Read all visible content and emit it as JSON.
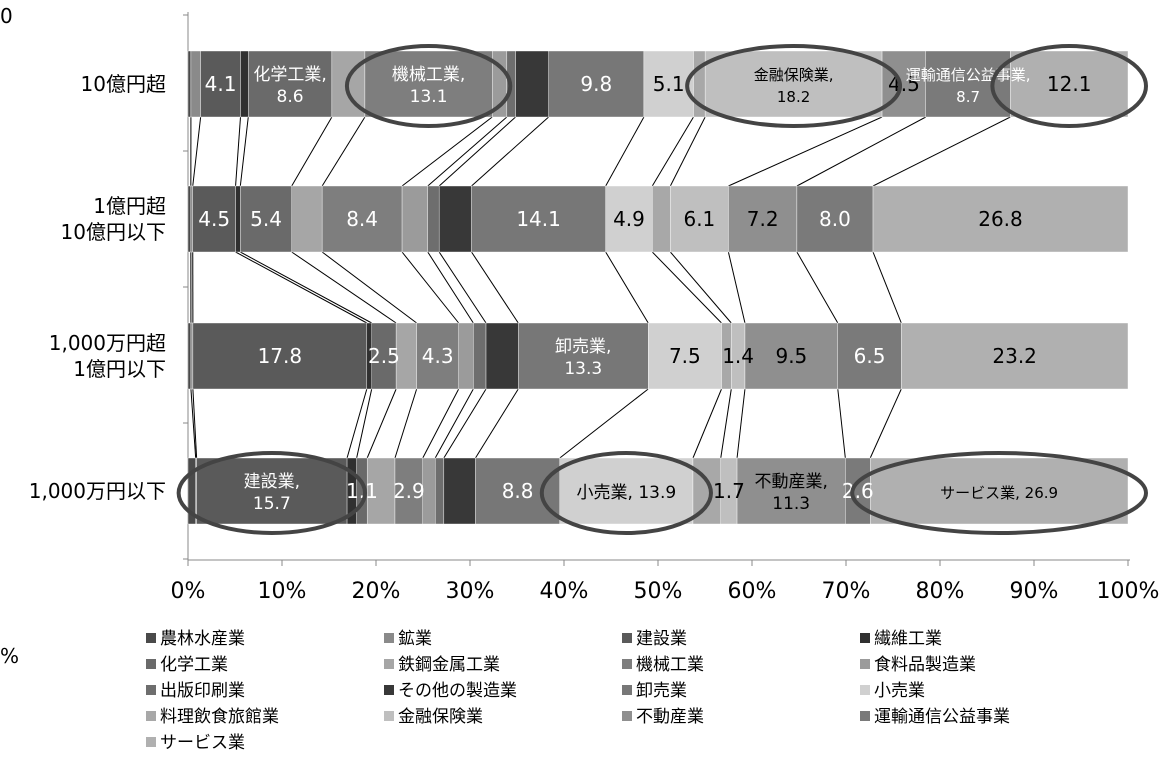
{
  "page": {
    "top_left_cut_label": "0",
    "left_middle_cut_label": "%"
  },
  "chart_data": {
    "type": "bar",
    "orientation": "horizontal",
    "stacked": "100%",
    "categories": [
      "10億円超",
      "1億円超\n10億円以下",
      "1,000万円超\n1億円以下",
      "1,000万円以下"
    ],
    "xlim": [
      0,
      100
    ],
    "x_tick_labels": [
      "0%",
      "10%",
      "20%",
      "30%",
      "40%",
      "50%",
      "60%",
      "70%",
      "80%",
      "90%",
      "100%"
    ],
    "legend_position": "bottom",
    "series": [
      {
        "name": "農林水産業",
        "values": [
          0.3,
          0.3,
          0.3,
          0.8
        ],
        "color": "#4a4a4a"
      },
      {
        "name": "鉱業",
        "values": [
          1.0,
          0.2,
          0.2,
          0.1
        ],
        "color": "#8a8a8a"
      },
      {
        "name": "建設業",
        "values": [
          4.1,
          4.5,
          17.8,
          15.7
        ],
        "color": "#5a5a5a"
      },
      {
        "name": "繊維工業",
        "values": [
          0.8,
          0.5,
          0.5,
          1.0
        ],
        "color": "#303030"
      },
      {
        "name": "化学工業",
        "values": [
          8.6,
          5.4,
          2.5,
          1.1
        ],
        "color": "#6a6a6a"
      },
      {
        "name": "鉄鋼金属工業",
        "values": [
          3.4,
          3.2,
          2.1,
          2.9
        ],
        "color": "#a6a6a6"
      },
      {
        "name": "機械工業",
        "values": [
          13.1,
          8.4,
          4.3,
          2.9
        ],
        "color": "#7e7e7e"
      },
      {
        "name": "食料品製造業",
        "values": [
          1.5,
          2.7,
          1.5,
          1.3
        ],
        "color": "#9b9b9b"
      },
      {
        "name": "出版印刷業",
        "values": [
          0.9,
          1.2,
          1.3,
          0.9
        ],
        "color": "#6e6e6e"
      },
      {
        "name": "その他の製造業",
        "values": [
          3.4,
          3.4,
          3.3,
          3.3
        ],
        "color": "#383838"
      },
      {
        "name": "卸売業",
        "values": [
          9.8,
          14.1,
          13.3,
          8.8
        ],
        "color": "#777777"
      },
      {
        "name": "小売業",
        "values": [
          5.1,
          4.9,
          7.5,
          13.9
        ],
        "color": "#d0d0d0"
      },
      {
        "name": "料理飲食旅館業",
        "values": [
          1.2,
          1.9,
          1.0,
          2.9
        ],
        "color": "#a8a8a8"
      },
      {
        "name": "金融保険業",
        "values": [
          18.2,
          6.1,
          1.4,
          1.7
        ],
        "color": "#bfbfbf"
      },
      {
        "name": "不動産業",
        "values": [
          4.5,
          7.2,
          9.5,
          11.3
        ],
        "color": "#8f8f8f"
      },
      {
        "name": "運輸通信公益事業",
        "values": [
          8.7,
          8.0,
          6.5,
          2.6
        ],
        "color": "#7a7a7a"
      },
      {
        "name": "サービス業",
        "values": [
          12.1,
          26.8,
          23.2,
          26.9
        ],
        "color": "#b0b0b0"
      }
    ],
    "data_labels": [
      [
        "",
        "",
        "4.1",
        "",
        "化学工業,\n8.6",
        "",
        "機械工業,\n13.1",
        "",
        "",
        "",
        "9.8",
        "5.1",
        "",
        "金融保険業,\n18.2",
        "4.5",
        "運輸通信公益事業,\n8.7",
        "12.1"
      ],
      [
        "",
        "",
        "4.5",
        "",
        "5.4",
        "",
        "8.4",
        "",
        "",
        "",
        "14.1",
        "4.9",
        "",
        "6.1",
        "7.2",
        "8.0",
        "26.8"
      ],
      [
        "",
        "",
        "17.8",
        "",
        "2.5",
        "",
        "4.3",
        "",
        "",
        "",
        "卸売業,\n13.3",
        "7.5",
        "",
        "1.4",
        "9.5",
        "6.5",
        "23.2"
      ],
      [
        "",
        "",
        "建設業,\n15.7",
        "",
        "1.1",
        "",
        "2.9",
        "",
        "",
        "",
        "8.8",
        "小売業, 13.9",
        "",
        "1.7",
        "不動産業,\n11.3",
        "2.6",
        "サービス業, 26.9"
      ]
    ],
    "highlighted_labels": [
      {
        "bar": 0,
        "series": "機械工業"
      },
      {
        "bar": 0,
        "series": "金融保険業"
      },
      {
        "bar": 0,
        "series": "サービス業"
      },
      {
        "bar": 3,
        "series": "建設業"
      },
      {
        "bar": 3,
        "series": "小売業"
      },
      {
        "bar": 3,
        "series": "サービス業"
      }
    ]
  }
}
